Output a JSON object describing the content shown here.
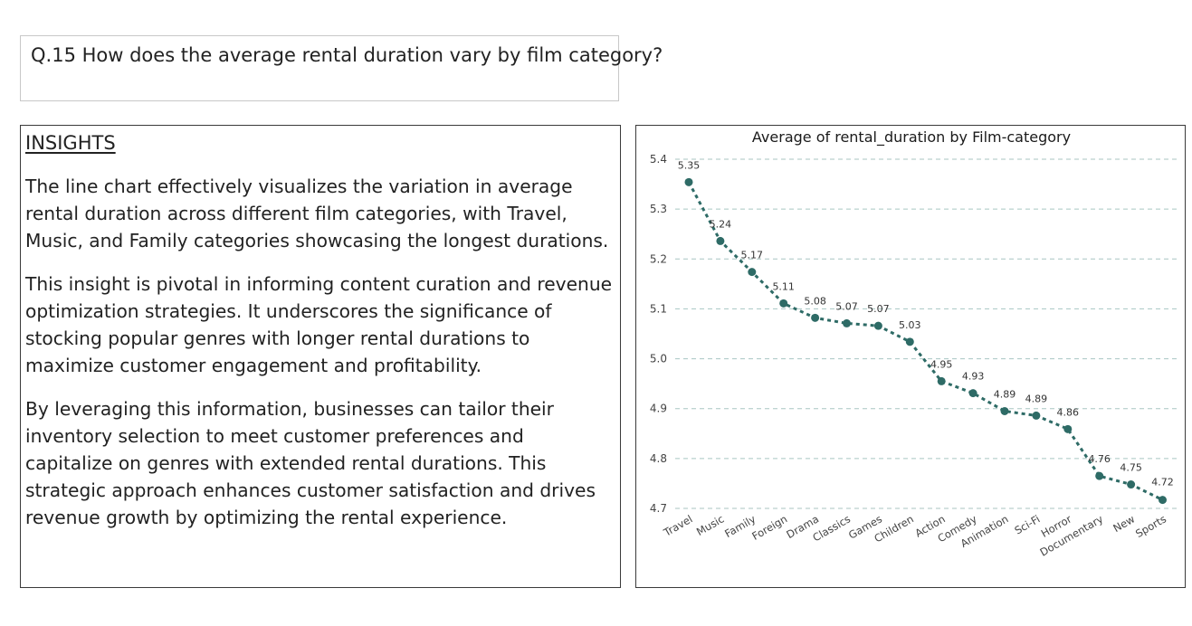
{
  "question": {
    "text": "Q.15 How does the average rental duration vary by film category?"
  },
  "insights": {
    "heading": "INSIGHTS",
    "paragraphs": [
      "The line chart effectively visualizes the variation in average rental duration across different film categories, with Travel, Music, and Family categories showcasing the longest durations.",
      "This insight is pivotal in informing content curation and revenue optimization strategies. It underscores the significance of stocking popular genres with longer rental durations to maximize customer engagement and profitability.",
      "By leveraging this information, businesses can tailor their inventory selection to meet customer preferences and capitalize on genres with extended rental durations. This strategic approach enhances customer satisfaction and drives revenue growth by optimizing the rental experience."
    ]
  },
  "chart_data": {
    "type": "line",
    "title": "Average of rental_duration by Film-category",
    "xlabel": "",
    "ylabel": "",
    "categories": [
      "Travel",
      "Music",
      "Family",
      "Foreign",
      "Drama",
      "Classics",
      "Games",
      "Children",
      "Action",
      "Comedy",
      "Animation",
      "Sci-Fi",
      "Horror",
      "Documentary",
      "New",
      "Sports"
    ],
    "series": [
      {
        "values": [
          5.35,
          5.24,
          5.17,
          5.11,
          5.08,
          5.07,
          5.07,
          5.03,
          4.95,
          4.93,
          4.89,
          4.89,
          4.86,
          4.76,
          4.75,
          4.72
        ],
        "plotted_values": [
          5.354,
          5.236,
          5.174,
          5.111,
          5.082,
          5.071,
          5.066,
          5.034,
          4.955,
          4.931,
          4.895,
          4.886,
          4.859,
          4.765,
          4.748,
          4.717
        ]
      }
    ],
    "yticks": [
      "4.7",
      "4.8",
      "4.9",
      "5.0",
      "5.1",
      "5.2",
      "5.3",
      "5.4"
    ],
    "ylim": [
      4.7,
      5.4
    ],
    "grid": true,
    "line_style": "dotted",
    "line_color": "#2e6b66",
    "gridline_color": "#a8c6c2"
  }
}
